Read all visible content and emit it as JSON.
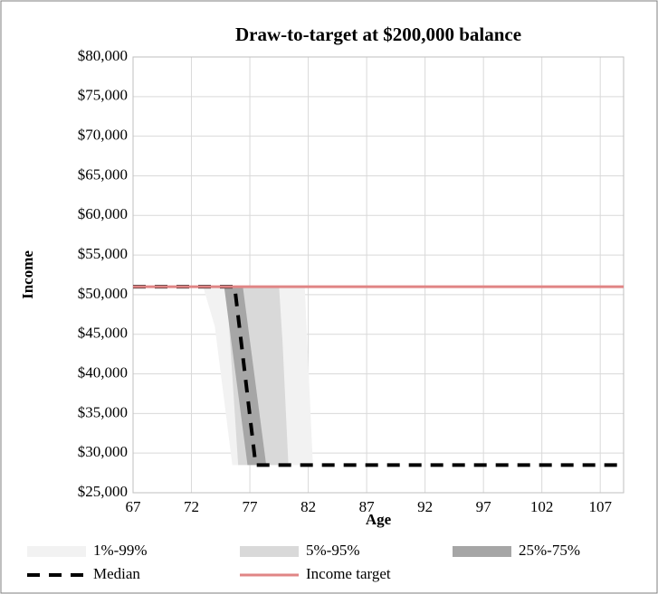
{
  "chart_data": {
    "type": "band-line",
    "title": "Draw-to-target at $200,000 balance",
    "x_label": "Age",
    "y_label": "Income",
    "xlim": [
      67,
      109
    ],
    "xticks": [
      67,
      72,
      77,
      82,
      87,
      92,
      97,
      102,
      107
    ],
    "ylim": [
      25000,
      80000
    ],
    "yticks": [
      {
        "value": 25000,
        "label": "$25,000"
      },
      {
        "value": 30000,
        "label": "$30,000"
      },
      {
        "value": 35000,
        "label": "$35,000"
      },
      {
        "value": 40000,
        "label": "$40,000"
      },
      {
        "value": 45000,
        "label": "$45,000"
      },
      {
        "value": 50000,
        "label": "$50,000"
      },
      {
        "value": 55000,
        "label": "$55,000"
      },
      {
        "value": 60000,
        "label": "$60,000"
      },
      {
        "value": 65000,
        "label": "$65,000"
      },
      {
        "value": 70000,
        "label": "$70,000"
      },
      {
        "value": 75000,
        "label": "$75,000"
      },
      {
        "value": 80000,
        "label": "$80,000"
      }
    ],
    "grid": true,
    "bands": [
      {
        "name": "1%-99%",
        "color": "#f2f2f2",
        "x": [
          73,
          74,
          75.5,
          81.7,
          82.4
        ],
        "upper": [
          51000,
          51000,
          51000,
          51000,
          28500
        ],
        "lower": [
          51000,
          46000,
          28500,
          28500,
          28500
        ]
      },
      {
        "name": "5%-95%",
        "color": "#d9d9d9",
        "x": [
          75,
          76,
          79.5,
          79.8,
          80.3
        ],
        "upper": [
          51000,
          51000,
          51000,
          44000,
          28500
        ],
        "lower": [
          51000,
          28500,
          28500,
          28500,
          28500
        ]
      },
      {
        "name": "25%-75%",
        "color": "#a6a6a6",
        "x": [
          74.8,
          76.4,
          76.8,
          78.4
        ],
        "upper": [
          51000,
          51000,
          46500,
          28500
        ],
        "lower": [
          51000,
          33000,
          28500,
          28500
        ]
      }
    ],
    "series": [
      {
        "name": "Median",
        "color": "#000000",
        "dashed": true,
        "x": [
          67,
          75.7,
          77.5,
          109
        ],
        "values": [
          51000,
          51000,
          28500,
          28500
        ]
      },
      {
        "name": "Income target",
        "color": "#e08585",
        "dashed": false,
        "x": [
          67,
          109
        ],
        "values": [
          51000,
          51000
        ]
      }
    ]
  }
}
